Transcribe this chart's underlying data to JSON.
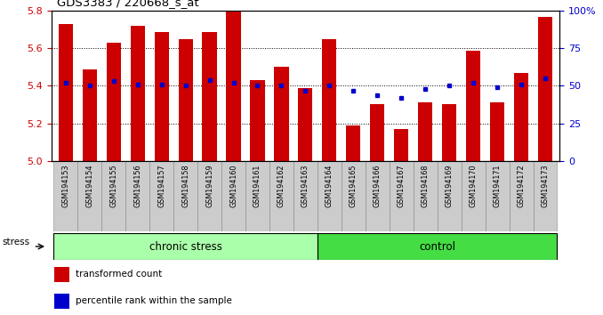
{
  "title": "GDS3383 / 220668_s_at",
  "samples": [
    "GSM194153",
    "GSM194154",
    "GSM194155",
    "GSM194156",
    "GSM194157",
    "GSM194158",
    "GSM194159",
    "GSM194160",
    "GSM194161",
    "GSM194162",
    "GSM194163",
    "GSM194164",
    "GSM194165",
    "GSM194166",
    "GSM194167",
    "GSM194168",
    "GSM194169",
    "GSM194170",
    "GSM194171",
    "GSM194172",
    "GSM194173"
  ],
  "bar_values": [
    5.73,
    5.49,
    5.63,
    5.72,
    5.69,
    5.65,
    5.69,
    5.8,
    5.43,
    5.5,
    5.39,
    5.65,
    5.19,
    5.3,
    5.17,
    5.31,
    5.3,
    5.59,
    5.31,
    5.47,
    5.77
  ],
  "percentile_values": [
    52,
    50,
    53,
    51,
    51,
    50,
    54,
    52,
    50,
    50,
    47,
    50,
    47,
    44,
    42,
    48,
    50,
    52,
    49,
    51,
    55
  ],
  "y_min": 5.0,
  "y_max": 5.8,
  "y_ticks": [
    5.0,
    5.2,
    5.4,
    5.6,
    5.8
  ],
  "right_y_ticks": [
    0,
    25,
    50,
    75,
    100
  ],
  "bar_color": "#CC0000",
  "percentile_color": "#0000CC",
  "chronic_stress_count": 11,
  "chronic_stress_label": "chronic stress",
  "control_label": "control",
  "stress_label": "stress",
  "chronic_stress_color": "#AAFFAA",
  "control_color": "#44DD44",
  "xtick_bg_color": "#CCCCCC",
  "legend_bar_label": "transformed count",
  "legend_pct_label": "percentile rank within the sample"
}
